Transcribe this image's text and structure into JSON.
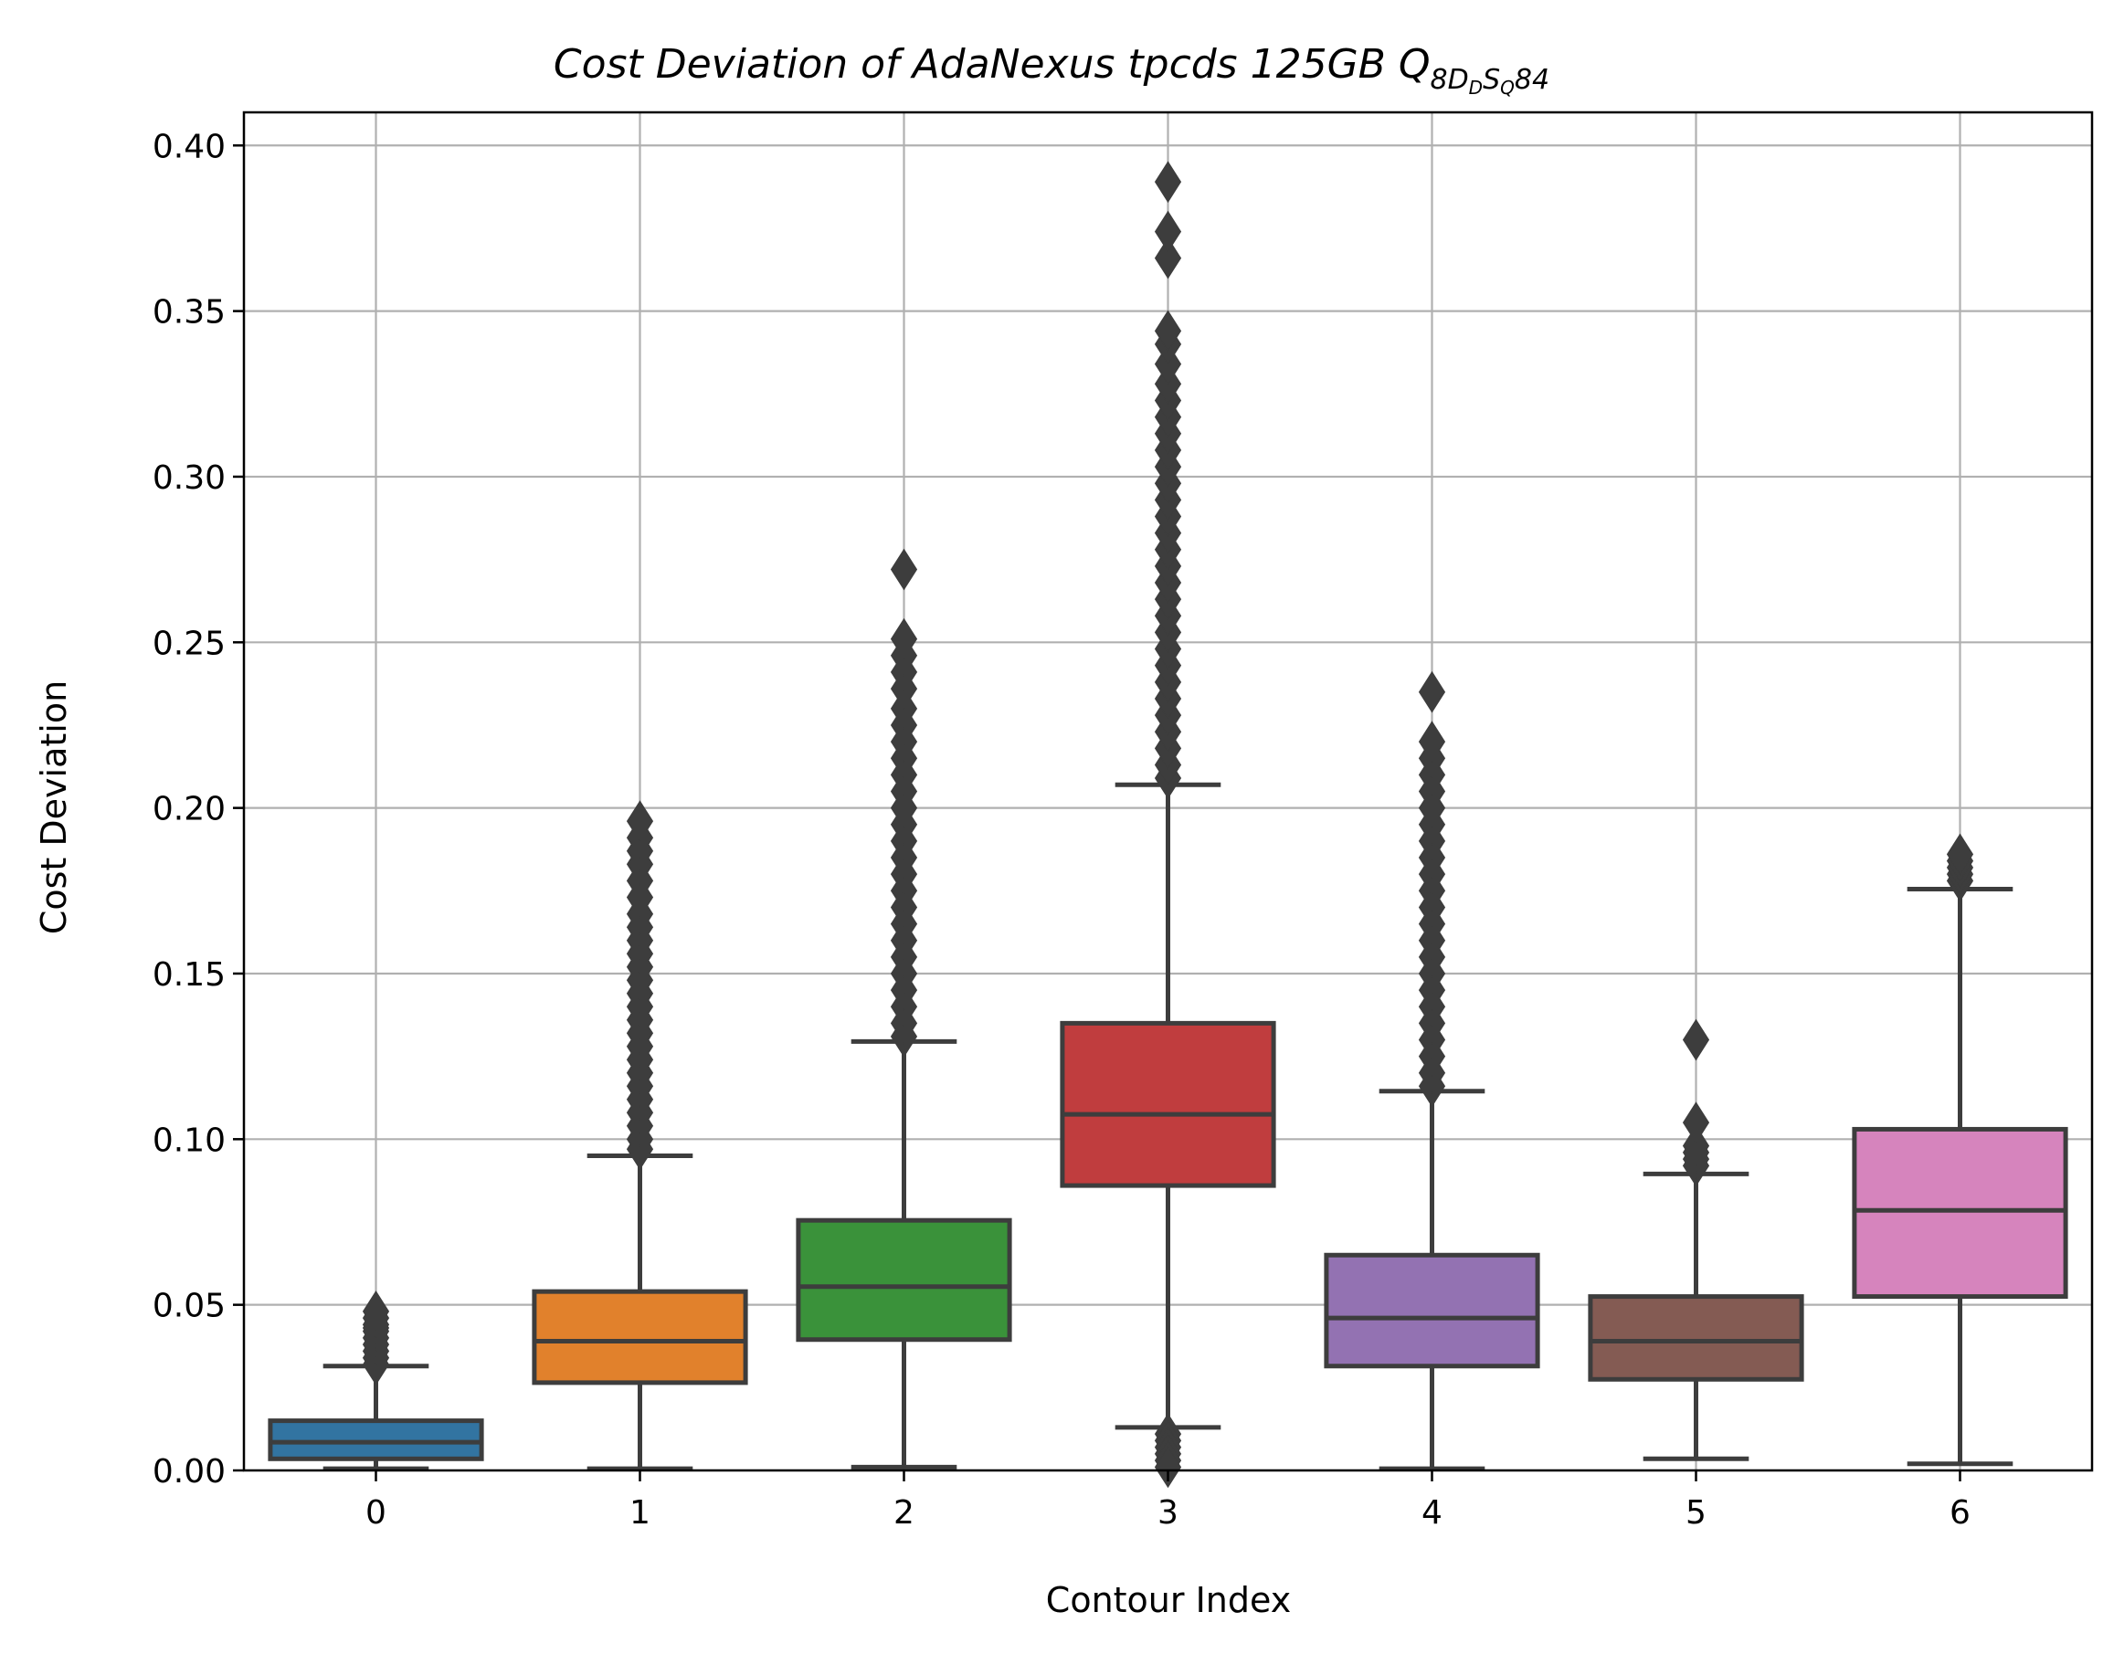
{
  "chart_data": {
    "type": "box",
    "title": {
      "main": "Cost Deviation of AdaNexus tpcds  125GB  Q",
      "subscript": "8D",
      "subsub1": "D",
      "subscript2": "S",
      "subsub2": "Q",
      "suffix": "84"
    },
    "xlabel": "Contour Index",
    "ylabel": "Cost Deviation",
    "ylim": [
      0,
      0.41
    ],
    "yticks": [
      "0.00",
      "0.05",
      "0.10",
      "0.15",
      "0.20",
      "0.25",
      "0.30",
      "0.35",
      "0.40"
    ],
    "categories": [
      "0",
      "1",
      "2",
      "3",
      "4",
      "5",
      "6"
    ],
    "grid": true,
    "series": [
      {
        "category": "0",
        "color": "#3274a1",
        "whisker_low": 0.0005,
        "q1": 0.0035,
        "median": 0.0085,
        "q3": 0.015,
        "whisker_high": 0.0315,
        "outliers_high": [
          0.032,
          0.034,
          0.036,
          0.038,
          0.04,
          0.042,
          0.043,
          0.044,
          0.046,
          0.048
        ],
        "outliers_low": []
      },
      {
        "category": "1",
        "color": "#e1812c",
        "whisker_low": 0.0005,
        "q1": 0.0265,
        "median": 0.039,
        "q3": 0.054,
        "whisker_high": 0.095,
        "outliers_high": [
          0.097,
          0.1,
          0.104,
          0.108,
          0.112,
          0.116,
          0.12,
          0.124,
          0.128,
          0.132,
          0.136,
          0.14,
          0.144,
          0.148,
          0.152,
          0.156,
          0.16,
          0.164,
          0.168,
          0.173,
          0.178,
          0.183,
          0.187,
          0.191,
          0.196
        ],
        "outliers_low": []
      },
      {
        "category": "2",
        "color": "#3a923a",
        "whisker_low": 0.001,
        "q1": 0.0395,
        "median": 0.0555,
        "q3": 0.0755,
        "whisker_high": 0.1295,
        "outliers_high": [
          0.131,
          0.135,
          0.14,
          0.145,
          0.15,
          0.155,
          0.16,
          0.165,
          0.17,
          0.175,
          0.18,
          0.185,
          0.19,
          0.195,
          0.2,
          0.205,
          0.21,
          0.215,
          0.22,
          0.225,
          0.23,
          0.236,
          0.241,
          0.246,
          0.251,
          0.272
        ],
        "outliers_low": []
      },
      {
        "category": "3",
        "color": "#c03d3e",
        "whisker_low": 0.013,
        "q1": 0.086,
        "median": 0.1075,
        "q3": 0.135,
        "whisker_high": 0.207,
        "outliers_high": [
          0.209,
          0.213,
          0.218,
          0.223,
          0.228,
          0.233,
          0.238,
          0.243,
          0.248,
          0.253,
          0.258,
          0.263,
          0.268,
          0.273,
          0.278,
          0.283,
          0.288,
          0.293,
          0.298,
          0.303,
          0.308,
          0.313,
          0.318,
          0.323,
          0.328,
          0.334,
          0.34,
          0.344,
          0.366,
          0.374,
          0.389
        ],
        "outliers_low": [
          0.011,
          0.009,
          0.007,
          0.005,
          0.003,
          0.001
        ]
      },
      {
        "category": "4",
        "color": "#9372b2",
        "whisker_low": 0.0005,
        "q1": 0.0315,
        "median": 0.046,
        "q3": 0.065,
        "whisker_high": 0.1145,
        "outliers_high": [
          0.116,
          0.12,
          0.125,
          0.13,
          0.135,
          0.14,
          0.145,
          0.15,
          0.155,
          0.16,
          0.165,
          0.17,
          0.175,
          0.18,
          0.185,
          0.19,
          0.195,
          0.2,
          0.205,
          0.21,
          0.215,
          0.22,
          0.235
        ],
        "outliers_low": []
      },
      {
        "category": "5",
        "color": "#845b53",
        "whisker_low": 0.0035,
        "q1": 0.0275,
        "median": 0.039,
        "q3": 0.0525,
        "whisker_high": 0.0895,
        "outliers_high": [
          0.092,
          0.094,
          0.096,
          0.098,
          0.105,
          0.13
        ],
        "outliers_low": []
      },
      {
        "category": "6",
        "color": "#d684bd",
        "whisker_low": 0.002,
        "q1": 0.0525,
        "median": 0.0785,
        "q3": 0.103,
        "whisker_high": 0.1755,
        "outliers_high": [
          0.178,
          0.18,
          0.182,
          0.184,
          0.186
        ],
        "outliers_low": []
      }
    ]
  }
}
